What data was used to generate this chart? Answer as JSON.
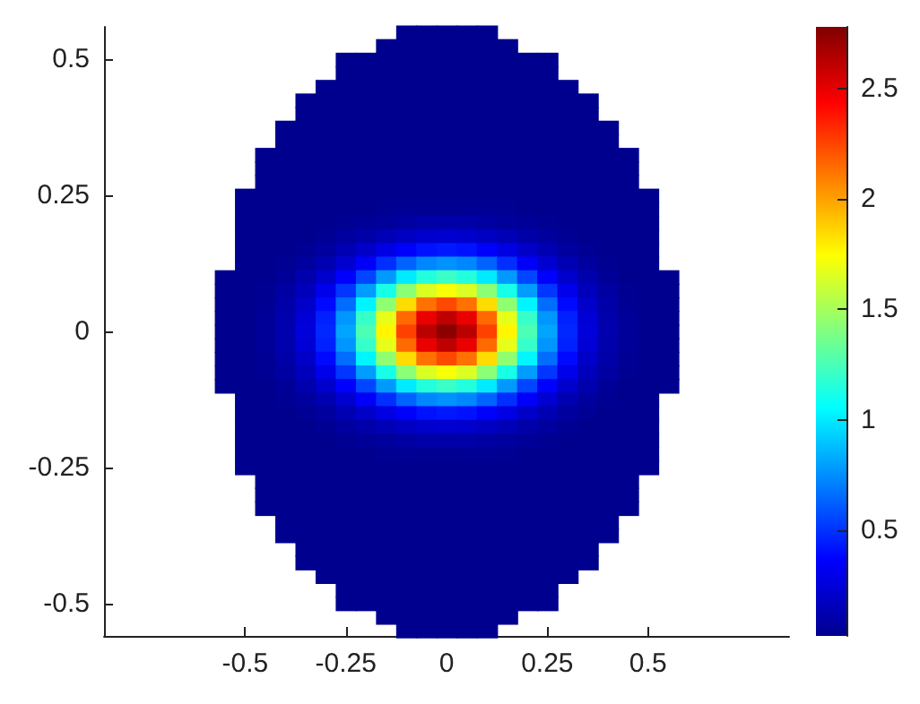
{
  "chart_data": {
    "type": "heatmap",
    "x": [
      -0.55,
      -0.5,
      -0.45,
      -0.4,
      -0.35,
      -0.3,
      -0.25,
      -0.2,
      -0.15,
      -0.1,
      -0.05,
      0,
      0.05,
      0.1,
      0.15,
      0.2,
      0.25,
      0.3,
      0.35,
      0.4,
      0.45,
      0.5,
      0.55
    ],
    "y": [
      0.55,
      0.525,
      0.5,
      0.475,
      0.45,
      0.425,
      0.4,
      0.375,
      0.35,
      0.325,
      0.3,
      0.275,
      0.25,
      0.225,
      0.2,
      0.175,
      0.15,
      0.125,
      0.1,
      0.075,
      0.05,
      0.025,
      0,
      -0.025,
      -0.05,
      -0.075,
      -0.1,
      -0.125,
      -0.15,
      -0.175,
      -0.2,
      -0.225,
      -0.25,
      -0.275,
      -0.3,
      -0.325,
      -0.35,
      -0.375,
      -0.4,
      -0.425,
      -0.45,
      -0.475,
      -0.5,
      -0.525,
      -0.55
    ],
    "cells": [
      [
        null,
        null,
        null,
        null,
        null,
        null,
        null,
        null,
        null,
        0.02,
        0.02,
        0.02,
        0.02,
        0.02,
        null,
        null,
        null,
        null,
        null,
        null,
        null,
        null,
        null
      ],
      [
        null,
        null,
        null,
        null,
        null,
        null,
        null,
        null,
        0.02,
        0.02,
        0.02,
        0.02,
        0.02,
        0.02,
        0.02,
        null,
        null,
        null,
        null,
        null,
        null,
        null,
        null
      ],
      [
        null,
        null,
        null,
        null,
        null,
        null,
        0.02,
        0.02,
        0.02,
        0.02,
        0.02,
        0.02,
        0.02,
        0.02,
        0.02,
        0.02,
        0.02,
        null,
        null,
        null,
        null,
        null,
        null
      ],
      [
        null,
        null,
        null,
        null,
        null,
        null,
        0.02,
        0.02,
        0.02,
        0.02,
        0.02,
        0.02,
        0.02,
        0.02,
        0.02,
        0.02,
        0.02,
        null,
        null,
        null,
        null,
        null,
        null
      ],
      [
        null,
        null,
        null,
        null,
        null,
        0.02,
        0.02,
        0.02,
        0.02,
        0.02,
        0.02,
        0.02,
        0.02,
        0.02,
        0.02,
        0.02,
        0.02,
        0.02,
        null,
        null,
        null,
        null,
        null
      ],
      [
        null,
        null,
        null,
        null,
        0.02,
        0.02,
        0.02,
        0.02,
        0.02,
        0.02,
        0.02,
        0.02,
        0.02,
        0.02,
        0.02,
        0.02,
        0.02,
        0.02,
        0.02,
        null,
        null,
        null,
        null
      ],
      [
        null,
        null,
        null,
        null,
        0.02,
        0.02,
        0.02,
        0.02,
        0.02,
        0.02,
        0.02,
        0.02,
        0.02,
        0.02,
        0.02,
        0.02,
        0.02,
        0.02,
        0.02,
        null,
        null,
        null,
        null
      ],
      [
        null,
        null,
        null,
        0.02,
        0.02,
        0.02,
        0.02,
        0.02,
        0.02,
        0.02,
        0.02,
        0.02,
        0.02,
        0.02,
        0.02,
        0.02,
        0.02,
        0.02,
        0.02,
        0.02,
        null,
        null,
        null
      ],
      [
        null,
        null,
        null,
        0.02,
        0.02,
        0.02,
        0.02,
        0.02,
        0.02,
        0.02,
        0.02,
        0.02,
        0.02,
        0.02,
        0.02,
        0.02,
        0.02,
        0.02,
        0.02,
        0.02,
        null,
        null,
        null
      ],
      [
        null,
        null,
        0.02,
        0.02,
        0.02,
        0.02,
        0.02,
        0.02,
        0.02,
        0.02,
        0.02,
        0.02,
        0.02,
        0.02,
        0.02,
        0.02,
        0.02,
        0.02,
        0.02,
        0.02,
        0.02,
        null,
        null
      ],
      [
        null,
        null,
        0.02,
        0.02,
        0.02,
        0.02,
        0.02,
        0.02,
        0.02,
        0.02,
        0.02,
        0.02,
        0.02,
        0.02,
        0.02,
        0.02,
        0.02,
        0.02,
        0.02,
        0.02,
        0.02,
        null,
        null
      ],
      [
        null,
        null,
        0.02,
        0.02,
        0.02,
        0.02,
        0.02,
        0.02,
        0.02,
        0.02,
        0.02,
        0.02,
        0.02,
        0.02,
        0.02,
        0.02,
        0.02,
        0.02,
        0.02,
        0.02,
        0.02,
        null,
        null
      ],
      [
        null,
        0.02,
        0.02,
        0.02,
        0.02,
        0.02,
        0.02,
        0.02,
        0.02,
        0.02,
        0.02,
        0.02,
        0.02,
        0.02,
        0.02,
        0.02,
        0.02,
        0.02,
        0.02,
        0.02,
        0.02,
        0.02,
        null
      ],
      [
        null,
        0.02,
        0.02,
        0.02,
        0.02,
        0.02,
        0.02,
        0.02,
        0.03,
        0.04,
        0.04,
        0.04,
        0.04,
        0.04,
        0.03,
        0.02,
        0.02,
        0.02,
        0.02,
        0.02,
        0.02,
        0.02,
        null
      ],
      [
        null,
        0.02,
        0.02,
        0.02,
        0.02,
        0.02,
        0.03,
        0.05,
        0.06,
        0.08,
        0.1,
        0.1,
        0.1,
        0.08,
        0.06,
        0.05,
        0.03,
        0.02,
        0.02,
        0.02,
        0.02,
        0.02,
        null
      ],
      [
        null,
        0.02,
        0.02,
        0.02,
        0.02,
        0.04,
        0.07,
        0.1,
        0.14,
        0.18,
        0.21,
        0.22,
        0.21,
        0.18,
        0.14,
        0.1,
        0.07,
        0.04,
        0.02,
        0.02,
        0.02,
        0.02,
        null
      ],
      [
        null,
        0.02,
        0.02,
        0.02,
        0.04,
        0.07,
        0.13,
        0.2,
        0.28,
        0.36,
        0.41,
        0.43,
        0.41,
        0.36,
        0.28,
        0.2,
        0.13,
        0.07,
        0.04,
        0.02,
        0.02,
        0.02,
        null
      ],
      [
        null,
        0.02,
        0.02,
        0.03,
        0.07,
        0.13,
        0.22,
        0.35,
        0.49,
        0.63,
        0.73,
        0.76,
        0.73,
        0.63,
        0.49,
        0.35,
        0.22,
        0.13,
        0.07,
        0.03,
        0.02,
        0.02,
        null
      ],
      [
        0.02,
        0.02,
        0.02,
        0.05,
        0.11,
        0.21,
        0.36,
        0.55,
        0.78,
        1.0,
        1.15,
        1.21,
        1.15,
        1.0,
        0.78,
        0.55,
        0.36,
        0.21,
        0.11,
        0.05,
        0.02,
        0.02,
        0.02
      ],
      [
        0.02,
        0.02,
        0.03,
        0.08,
        0.16,
        0.3,
        0.51,
        0.79,
        1.12,
        1.43,
        1.65,
        1.73,
        1.65,
        1.43,
        1.12,
        0.79,
        0.51,
        0.3,
        0.16,
        0.08,
        0.03,
        0.02,
        0.02
      ],
      [
        0.02,
        0.02,
        0.04,
        0.1,
        0.2,
        0.39,
        0.66,
        1.03,
        1.44,
        1.84,
        2.13,
        2.24,
        2.13,
        1.84,
        1.44,
        1.03,
        0.66,
        0.39,
        0.2,
        0.1,
        0.04,
        0.02,
        0.02
      ],
      [
        0.02,
        0.02,
        0.05,
        0.11,
        0.24,
        0.45,
        0.77,
        1.2,
        1.68,
        2.15,
        2.49,
        2.61,
        2.49,
        2.15,
        1.68,
        1.2,
        0.77,
        0.45,
        0.24,
        0.11,
        0.05,
        0.02,
        0.02
      ],
      [
        0.02,
        0.02,
        0.05,
        0.12,
        0.25,
        0.47,
        0.81,
        1.26,
        1.77,
        2.26,
        2.62,
        2.75,
        2.62,
        2.26,
        1.77,
        1.26,
        0.81,
        0.47,
        0.25,
        0.12,
        0.05,
        0.02,
        0.02
      ],
      [
        0.02,
        0.02,
        0.05,
        0.11,
        0.24,
        0.45,
        0.77,
        1.2,
        1.68,
        2.15,
        2.49,
        2.61,
        2.49,
        2.15,
        1.68,
        1.2,
        0.77,
        0.45,
        0.24,
        0.11,
        0.05,
        0.02,
        0.02
      ],
      [
        0.02,
        0.02,
        0.04,
        0.1,
        0.2,
        0.39,
        0.66,
        1.03,
        1.44,
        1.84,
        2.13,
        2.24,
        2.13,
        1.84,
        1.44,
        1.03,
        0.66,
        0.39,
        0.2,
        0.1,
        0.04,
        0.02,
        0.02
      ],
      [
        0.02,
        0.02,
        0.03,
        0.08,
        0.16,
        0.3,
        0.51,
        0.79,
        1.12,
        1.43,
        1.65,
        1.73,
        1.65,
        1.43,
        1.12,
        0.79,
        0.51,
        0.3,
        0.16,
        0.08,
        0.03,
        0.02,
        0.02
      ],
      [
        0.02,
        0.02,
        0.02,
        0.05,
        0.11,
        0.21,
        0.36,
        0.55,
        0.78,
        1.0,
        1.15,
        1.21,
        1.15,
        1.0,
        0.78,
        0.55,
        0.36,
        0.21,
        0.11,
        0.05,
        0.02,
        0.02,
        0.02
      ],
      [
        null,
        0.02,
        0.02,
        0.03,
        0.07,
        0.13,
        0.22,
        0.35,
        0.49,
        0.63,
        0.73,
        0.76,
        0.73,
        0.63,
        0.49,
        0.35,
        0.22,
        0.13,
        0.07,
        0.03,
        0.02,
        0.02,
        null
      ],
      [
        null,
        0.02,
        0.02,
        0.02,
        0.04,
        0.07,
        0.13,
        0.2,
        0.28,
        0.36,
        0.41,
        0.43,
        0.41,
        0.36,
        0.28,
        0.2,
        0.13,
        0.07,
        0.04,
        0.02,
        0.02,
        0.02,
        null
      ],
      [
        null,
        0.02,
        0.02,
        0.02,
        0.02,
        0.04,
        0.07,
        0.1,
        0.14,
        0.18,
        0.21,
        0.22,
        0.21,
        0.18,
        0.14,
        0.1,
        0.07,
        0.04,
        0.02,
        0.02,
        0.02,
        0.02,
        null
      ],
      [
        null,
        0.02,
        0.02,
        0.02,
        0.02,
        0.02,
        0.03,
        0.05,
        0.06,
        0.08,
        0.1,
        0.1,
        0.1,
        0.08,
        0.06,
        0.05,
        0.03,
        0.02,
        0.02,
        0.02,
        0.02,
        0.02,
        null
      ],
      [
        null,
        0.02,
        0.02,
        0.02,
        0.02,
        0.02,
        0.02,
        0.02,
        0.03,
        0.04,
        0.04,
        0.04,
        0.04,
        0.04,
        0.03,
        0.02,
        0.02,
        0.02,
        0.02,
        0.02,
        0.02,
        0.02,
        null
      ],
      [
        null,
        0.02,
        0.02,
        0.02,
        0.02,
        0.02,
        0.02,
        0.02,
        0.02,
        0.02,
        0.02,
        0.02,
        0.02,
        0.02,
        0.02,
        0.02,
        0.02,
        0.02,
        0.02,
        0.02,
        0.02,
        0.02,
        null
      ],
      [
        null,
        null,
        0.02,
        0.02,
        0.02,
        0.02,
        0.02,
        0.02,
        0.02,
        0.02,
        0.02,
        0.02,
        0.02,
        0.02,
        0.02,
        0.02,
        0.02,
        0.02,
        0.02,
        0.02,
        0.02,
        null,
        null
      ],
      [
        null,
        null,
        0.02,
        0.02,
        0.02,
        0.02,
        0.02,
        0.02,
        0.02,
        0.02,
        0.02,
        0.02,
        0.02,
        0.02,
        0.02,
        0.02,
        0.02,
        0.02,
        0.02,
        0.02,
        0.02,
        null,
        null
      ],
      [
        null,
        null,
        0.02,
        0.02,
        0.02,
        0.02,
        0.02,
        0.02,
        0.02,
        0.02,
        0.02,
        0.02,
        0.02,
        0.02,
        0.02,
        0.02,
        0.02,
        0.02,
        0.02,
        0.02,
        0.02,
        null,
        null
      ],
      [
        null,
        null,
        null,
        0.02,
        0.02,
        0.02,
        0.02,
        0.02,
        0.02,
        0.02,
        0.02,
        0.02,
        0.02,
        0.02,
        0.02,
        0.02,
        0.02,
        0.02,
        0.02,
        0.02,
        null,
        null,
        null
      ],
      [
        null,
        null,
        null,
        0.02,
        0.02,
        0.02,
        0.02,
        0.02,
        0.02,
        0.02,
        0.02,
        0.02,
        0.02,
        0.02,
        0.02,
        0.02,
        0.02,
        0.02,
        0.02,
        0.02,
        null,
        null,
        null
      ],
      [
        null,
        null,
        null,
        null,
        0.02,
        0.02,
        0.02,
        0.02,
        0.02,
        0.02,
        0.02,
        0.02,
        0.02,
        0.02,
        0.02,
        0.02,
        0.02,
        0.02,
        0.02,
        null,
        null,
        null,
        null
      ],
      [
        null,
        null,
        null,
        null,
        0.02,
        0.02,
        0.02,
        0.02,
        0.02,
        0.02,
        0.02,
        0.02,
        0.02,
        0.02,
        0.02,
        0.02,
        0.02,
        0.02,
        0.02,
        null,
        null,
        null,
        null
      ],
      [
        null,
        null,
        null,
        null,
        null,
        0.02,
        0.02,
        0.02,
        0.02,
        0.02,
        0.02,
        0.02,
        0.02,
        0.02,
        0.02,
        0.02,
        0.02,
        0.02,
        null,
        null,
        null,
        null,
        null
      ],
      [
        null,
        null,
        null,
        null,
        null,
        null,
        0.02,
        0.02,
        0.02,
        0.02,
        0.02,
        0.02,
        0.02,
        0.02,
        0.02,
        0.02,
        0.02,
        null,
        null,
        null,
        null,
        null,
        null
      ],
      [
        null,
        null,
        null,
        null,
        null,
        null,
        0.02,
        0.02,
        0.02,
        0.02,
        0.02,
        0.02,
        0.02,
        0.02,
        0.02,
        0.02,
        0.02,
        null,
        null,
        null,
        null,
        null,
        null
      ],
      [
        null,
        null,
        null,
        null,
        null,
        null,
        null,
        null,
        0.02,
        0.02,
        0.02,
        0.02,
        0.02,
        0.02,
        0.02,
        null,
        null,
        null,
        null,
        null,
        null,
        null,
        null
      ],
      [
        null,
        null,
        null,
        null,
        null,
        null,
        null,
        null,
        null,
        0.02,
        0.02,
        0.02,
        0.02,
        0.02,
        null,
        null,
        null,
        null,
        null,
        null,
        null,
        null,
        null
      ]
    ],
    "clim": [
      0.02,
      2.78
    ],
    "cticks": [
      0.5,
      1,
      1.5,
      2,
      2.5
    ],
    "xlim": [
      -0.85,
      0.85
    ],
    "xticks": [
      -0.5,
      -0.25,
      0,
      0.25,
      0.5
    ],
    "ylim": [
      -0.56,
      0.56
    ],
    "yticks": [
      -0.5,
      -0.25,
      0,
      0.25,
      0.5
    ]
  }
}
